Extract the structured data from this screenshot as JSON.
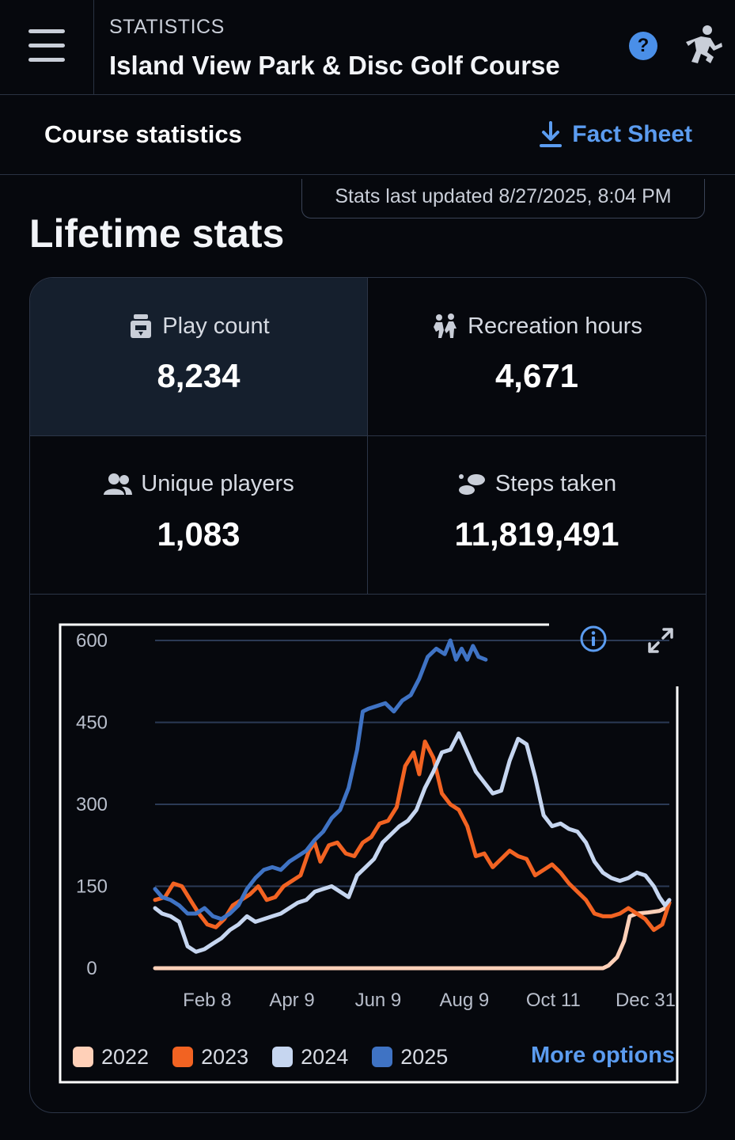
{
  "header": {
    "eyebrow": "STATISTICS",
    "title": "Island View Park & Disc Golf Course",
    "menu_icon": "hamburger-icon",
    "help_icon": "question-icon",
    "logo_icon": "disc-golfer-icon"
  },
  "subheader": {
    "title": "Course statistics",
    "fact_sheet_label": "Fact Sheet",
    "fact_sheet_icon": "download-icon"
  },
  "updated_text": "Stats last updated 8/27/2025, 8:04 PM",
  "lifetime_heading": "Lifetime stats",
  "stats": [
    {
      "label": "Play count",
      "value": "8,234",
      "icon": "scorecard-icon"
    },
    {
      "label": "Recreation hours",
      "value": "4,671",
      "icon": "walking-people-icon"
    },
    {
      "label": "Unique players",
      "value": "1,083",
      "icon": "people-icon"
    },
    {
      "label": "Steps taken",
      "value": "11,819,491",
      "icon": "footsteps-icon"
    }
  ],
  "more_options_label": "More options",
  "colors": {
    "accent": "#5b9cf0",
    "background": "#06080d",
    "series_2022": "#ffd0b8",
    "series_2023": "#f26322",
    "series_2024": "#c6d6f0",
    "series_2025": "#3f73c4"
  },
  "chart_data": {
    "type": "line",
    "title": "",
    "xlabel": "",
    "ylabel": "",
    "ylim": [
      0,
      600
    ],
    "y_ticks": [
      "0",
      "150",
      "300",
      "450",
      "600"
    ],
    "x_tick_labels": [
      "Feb 8",
      "Apr 9",
      "Jun 9",
      "Aug 9",
      "Oct 11",
      "Dec 31"
    ],
    "x_tick_days": [
      39,
      99,
      160,
      221,
      284,
      365
    ],
    "x_range_days": [
      1,
      365
    ],
    "legend_position": "bottom",
    "grid": true,
    "series": [
      {
        "name": "2022",
        "color": "#ffd0b8",
        "points": [
          [
            1,
            0
          ],
          [
            60,
            0
          ],
          [
            120,
            0
          ],
          [
            180,
            0
          ],
          [
            240,
            0
          ],
          [
            300,
            0
          ],
          [
            318,
            0
          ],
          [
            322,
            5
          ],
          [
            328,
            20
          ],
          [
            333,
            50
          ],
          [
            337,
            95
          ],
          [
            342,
            100
          ],
          [
            350,
            102
          ],
          [
            358,
            105
          ],
          [
            362,
            110
          ],
          [
            365,
            120
          ]
        ]
      },
      {
        "name": "2023",
        "color": "#f26322",
        "points": [
          [
            1,
            125
          ],
          [
            8,
            130
          ],
          [
            14,
            155
          ],
          [
            20,
            150
          ],
          [
            26,
            125
          ],
          [
            32,
            100
          ],
          [
            38,
            80
          ],
          [
            44,
            75
          ],
          [
            50,
            90
          ],
          [
            56,
            115
          ],
          [
            62,
            125
          ],
          [
            68,
            135
          ],
          [
            74,
            150
          ],
          [
            80,
            125
          ],
          [
            86,
            130
          ],
          [
            92,
            150
          ],
          [
            98,
            160
          ],
          [
            104,
            170
          ],
          [
            110,
            215
          ],
          [
            114,
            230
          ],
          [
            118,
            195
          ],
          [
            124,
            225
          ],
          [
            130,
            230
          ],
          [
            136,
            210
          ],
          [
            142,
            205
          ],
          [
            148,
            230
          ],
          [
            154,
            240
          ],
          [
            160,
            265
          ],
          [
            166,
            270
          ],
          [
            172,
            295
          ],
          [
            178,
            370
          ],
          [
            184,
            395
          ],
          [
            188,
            355
          ],
          [
            192,
            415
          ],
          [
            198,
            385
          ],
          [
            204,
            320
          ],
          [
            210,
            300
          ],
          [
            216,
            290
          ],
          [
            222,
            260
          ],
          [
            228,
            205
          ],
          [
            234,
            210
          ],
          [
            240,
            185
          ],
          [
            246,
            200
          ],
          [
            252,
            215
          ],
          [
            258,
            205
          ],
          [
            264,
            200
          ],
          [
            270,
            170
          ],
          [
            276,
            180
          ],
          [
            282,
            190
          ],
          [
            288,
            175
          ],
          [
            294,
            155
          ],
          [
            300,
            140
          ],
          [
            306,
            125
          ],
          [
            312,
            100
          ],
          [
            318,
            95
          ],
          [
            324,
            95
          ],
          [
            330,
            100
          ],
          [
            336,
            110
          ],
          [
            342,
            100
          ],
          [
            348,
            90
          ],
          [
            354,
            70
          ],
          [
            360,
            80
          ],
          [
            365,
            120
          ]
        ]
      },
      {
        "name": "2024",
        "color": "#c6d6f0",
        "points": [
          [
            1,
            110
          ],
          [
            6,
            100
          ],
          [
            12,
            95
          ],
          [
            18,
            85
          ],
          [
            24,
            40
          ],
          [
            30,
            30
          ],
          [
            36,
            35
          ],
          [
            42,
            45
          ],
          [
            48,
            55
          ],
          [
            54,
            70
          ],
          [
            60,
            80
          ],
          [
            66,
            95
          ],
          [
            72,
            85
          ],
          [
            78,
            90
          ],
          [
            84,
            95
          ],
          [
            90,
            100
          ],
          [
            96,
            110
          ],
          [
            102,
            120
          ],
          [
            108,
            125
          ],
          [
            114,
            140
          ],
          [
            120,
            145
          ],
          [
            126,
            150
          ],
          [
            132,
            140
          ],
          [
            138,
            130
          ],
          [
            144,
            170
          ],
          [
            150,
            185
          ],
          [
            156,
            200
          ],
          [
            162,
            230
          ],
          [
            168,
            245
          ],
          [
            174,
            260
          ],
          [
            180,
            270
          ],
          [
            186,
            290
          ],
          [
            192,
            330
          ],
          [
            198,
            360
          ],
          [
            204,
            395
          ],
          [
            210,
            400
          ],
          [
            216,
            430
          ],
          [
            222,
            395
          ],
          [
            228,
            360
          ],
          [
            234,
            340
          ],
          [
            240,
            320
          ],
          [
            246,
            325
          ],
          [
            252,
            380
          ],
          [
            258,
            420
          ],
          [
            264,
            410
          ],
          [
            270,
            350
          ],
          [
            276,
            280
          ],
          [
            282,
            260
          ],
          [
            288,
            265
          ],
          [
            294,
            255
          ],
          [
            300,
            250
          ],
          [
            306,
            230
          ],
          [
            312,
            195
          ],
          [
            318,
            175
          ],
          [
            324,
            165
          ],
          [
            330,
            160
          ],
          [
            336,
            165
          ],
          [
            342,
            175
          ],
          [
            348,
            170
          ],
          [
            354,
            150
          ],
          [
            358,
            130
          ],
          [
            362,
            115
          ],
          [
            365,
            125
          ]
        ]
      },
      {
        "name": "2025",
        "color": "#3f73c4",
        "points": [
          [
            1,
            145
          ],
          [
            6,
            130
          ],
          [
            12,
            125
          ],
          [
            18,
            115
          ],
          [
            24,
            100
          ],
          [
            30,
            100
          ],
          [
            36,
            110
          ],
          [
            42,
            95
          ],
          [
            48,
            90
          ],
          [
            54,
            100
          ],
          [
            60,
            115
          ],
          [
            66,
            145
          ],
          [
            72,
            165
          ],
          [
            78,
            180
          ],
          [
            84,
            185
          ],
          [
            90,
            180
          ],
          [
            96,
            195
          ],
          [
            102,
            205
          ],
          [
            108,
            215
          ],
          [
            114,
            235
          ],
          [
            120,
            250
          ],
          [
            126,
            275
          ],
          [
            132,
            290
          ],
          [
            138,
            330
          ],
          [
            144,
            400
          ],
          [
            148,
            470
          ],
          [
            152,
            475
          ],
          [
            158,
            480
          ],
          [
            164,
            485
          ],
          [
            170,
            470
          ],
          [
            176,
            490
          ],
          [
            182,
            500
          ],
          [
            188,
            530
          ],
          [
            194,
            570
          ],
          [
            200,
            585
          ],
          [
            206,
            575
          ],
          [
            210,
            600
          ],
          [
            214,
            565
          ],
          [
            218,
            585
          ],
          [
            222,
            565
          ],
          [
            226,
            590
          ],
          [
            230,
            570
          ],
          [
            235,
            565
          ]
        ]
      }
    ]
  }
}
